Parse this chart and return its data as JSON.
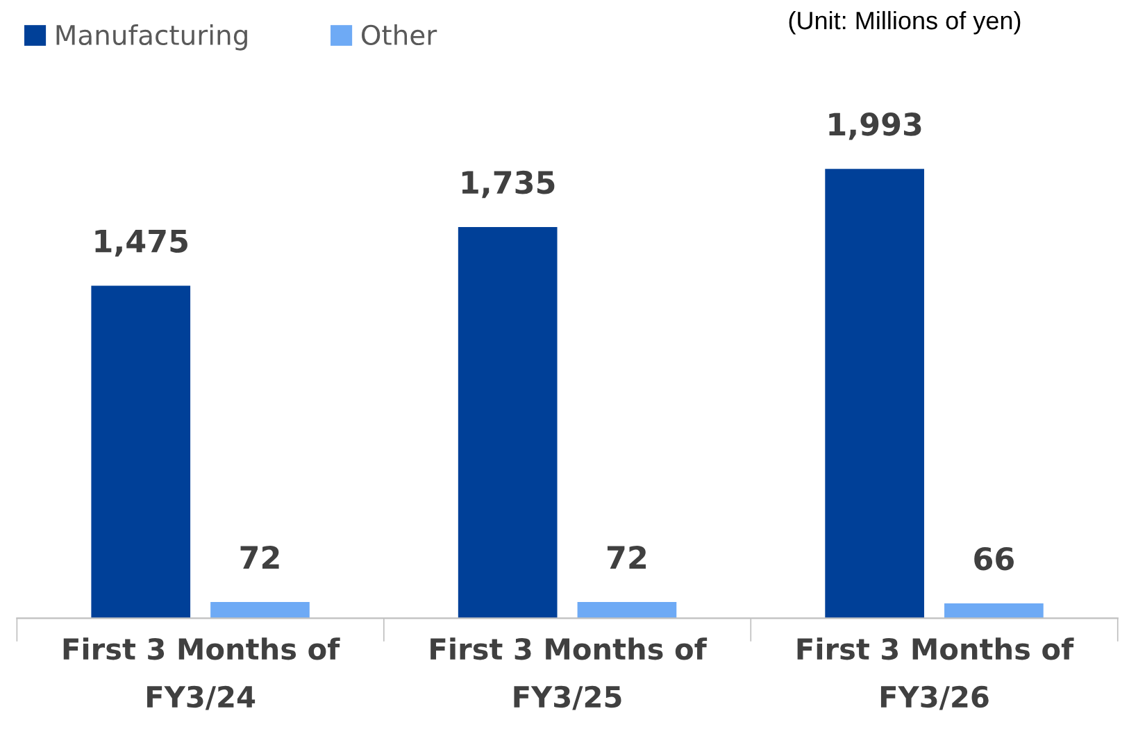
{
  "chart_data": {
    "type": "bar",
    "categories": [
      "First 3 Months of\nFY3/24",
      "First 3 Months of\nFY3/25",
      "First 3 Months of\nFY3/26"
    ],
    "series": [
      {
        "name": "Manufacturing",
        "color": "#004098",
        "values": [
          1475,
          1735,
          1993
        ],
        "value_labels": [
          "1,475",
          "1,735",
          "1,993"
        ]
      },
      {
        "name": "Other",
        "color": "#6eaaf5",
        "values": [
          72,
          72,
          66
        ],
        "value_labels": [
          "72",
          "72",
          "66"
        ]
      }
    ],
    "tick_labels": "x",
    "legend": "top left",
    "annotations": [
      "(Unit: Millions of yen)"
    ]
  }
}
